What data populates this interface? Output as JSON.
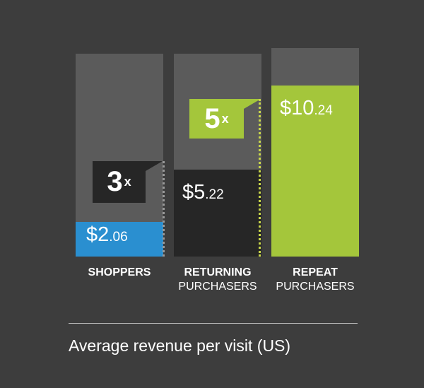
{
  "chart_data": {
    "type": "bar",
    "categories": [
      {
        "line1": "SHOPPERS",
        "line2": ""
      },
      {
        "line1": "RETURNING",
        "line2": "PURCHASERS"
      },
      {
        "line1": "REPEAT",
        "line2": "PURCHASERS"
      }
    ],
    "values": [
      2.06,
      5.22,
      10.24
    ],
    "value_labels": [
      {
        "main": "$2",
        "cents": ".06"
      },
      {
        "main": "$5",
        "cents": ".22"
      },
      {
        "main": "$10",
        "cents": ".24"
      }
    ],
    "bar_colors": [
      "#2a8fd0",
      "#262626",
      "#a4c63b"
    ],
    "track_color": "#5b5b5b",
    "multipliers": [
      {
        "number": "3",
        "suffix": "x",
        "box_color": "#262626",
        "text_color": "#ffffff",
        "dots_color": "#9a9a9a"
      },
      {
        "number": "5",
        "suffix": "x",
        "box_color": "#a4c63b",
        "text_color": "#ffffff",
        "dots_color": "#c9d74a"
      }
    ],
    "ylim": [
      0,
      12.5
    ],
    "grid": false,
    "caption": "Average revenue per visit (US)"
  }
}
